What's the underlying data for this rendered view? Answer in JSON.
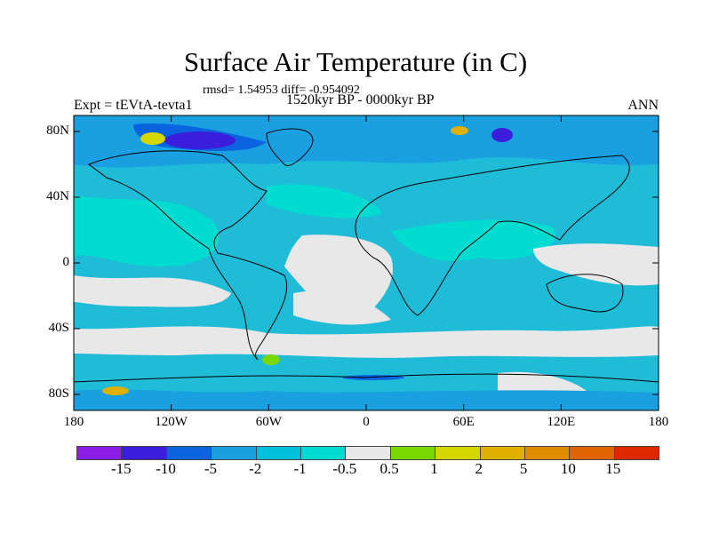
{
  "title": "Surface Air Temperature (in C)",
  "stats": "rmsd= 1.54953 diff= -0.954092",
  "left_label": "Expt = tEVtA-tevta1",
  "center_label": "1520kyr BP - 0000kyr BP",
  "right_label": "ANN",
  "lat_ticks": [
    "80N",
    "40N",
    "0",
    "40S",
    "80S"
  ],
  "lat_values": [
    80,
    40,
    0,
    -40,
    -80
  ],
  "lon_ticks": [
    "180",
    "120W",
    "60W",
    "0",
    "60E",
    "120E",
    "180"
  ],
  "lon_values": [
    -180,
    -120,
    -60,
    0,
    60,
    120,
    180
  ],
  "colorbar": {
    "labels": [
      "-15",
      "-10",
      "-5",
      "-2",
      "-1",
      "-0.5",
      "0.5",
      "1",
      "2",
      "5",
      "10",
      "15"
    ],
    "colors": [
      "#8a1ee8",
      "#3a1edc",
      "#0a64e0",
      "#1aa0e0",
      "#00c0dc",
      "#00dcd0",
      "#e8e8e8",
      "#78d800",
      "#d4d800",
      "#e0b000",
      "#e08c00",
      "#e06400",
      "#e02800"
    ]
  }
}
